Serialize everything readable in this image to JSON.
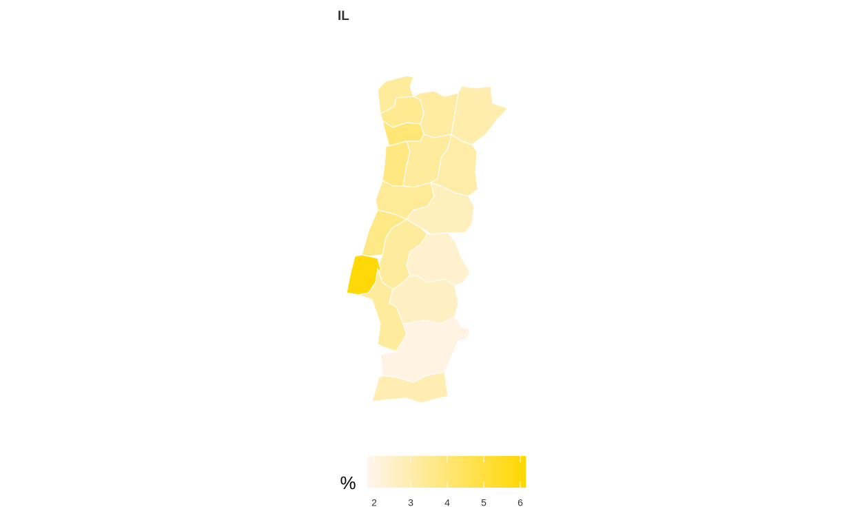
{
  "chart_data": {
    "type": "choropleth",
    "title": "IL",
    "legend_title": "%",
    "colorbar": {
      "lim": [
        1.81,
        6.15
      ],
      "ticks": [
        2,
        3,
        4,
        5,
        6
      ],
      "colors": [
        "#fff5ee",
        "#ffd700"
      ]
    },
    "values": [
      3.3,
      3.5,
      3.2,
      3.0,
      4.0,
      3.8,
      3.3,
      3.1,
      3.4,
      2.7,
      3.7,
      3.3,
      2.4,
      6.0,
      3.3,
      2.6,
      2.0,
      2.9
    ]
  }
}
